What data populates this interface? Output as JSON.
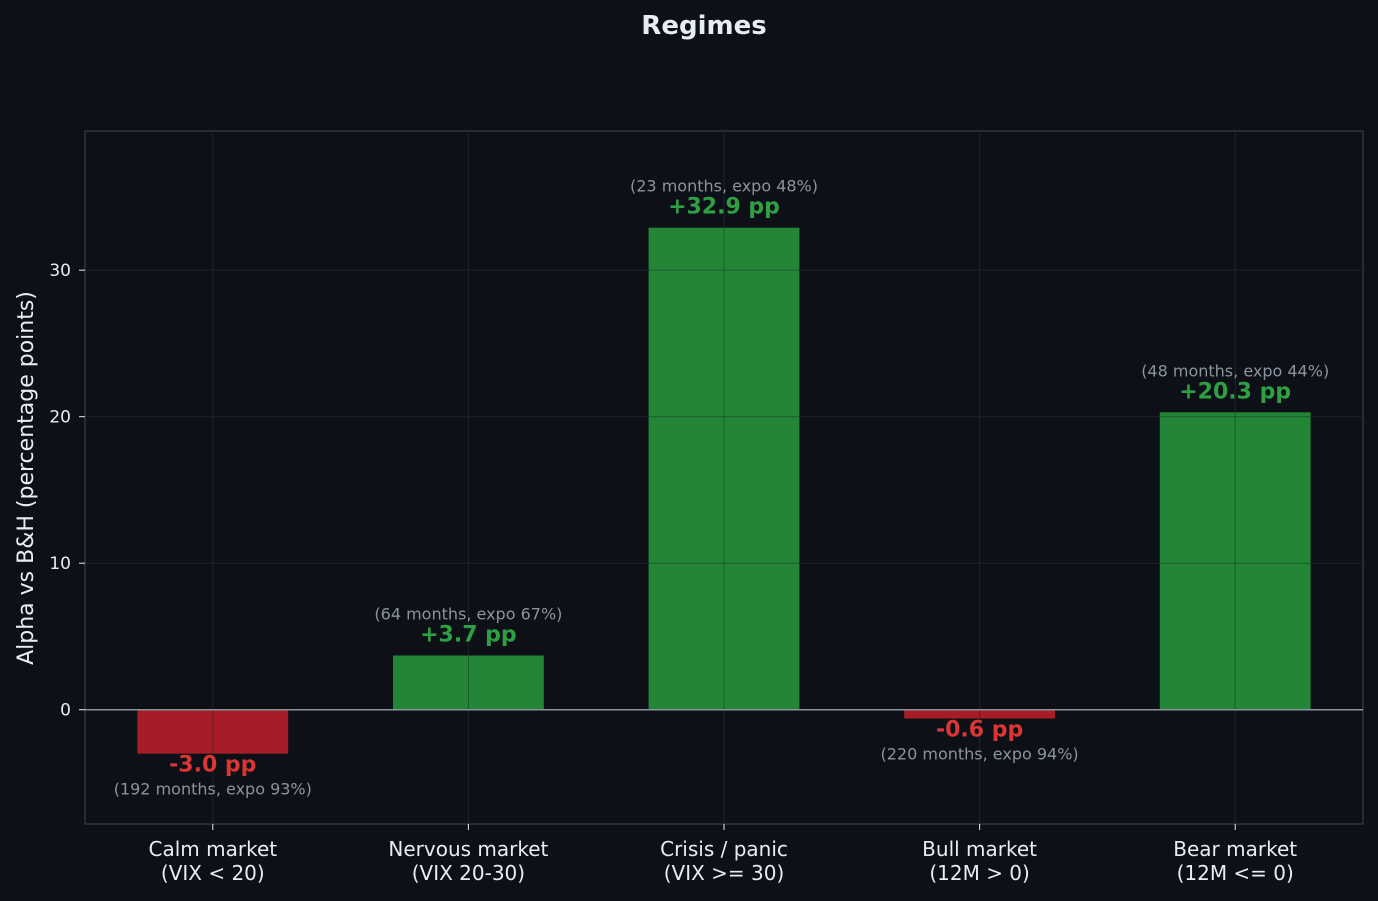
{
  "chart_data": {
    "type": "bar",
    "title": "Regimes",
    "xlabel": "",
    "ylabel": "Alpha vs B&H (percentage points)",
    "ylim": [
      -7.8,
      39.5
    ],
    "yticks": [
      0,
      10,
      20,
      30
    ],
    "grid": true,
    "categories": [
      [
        "Calm market",
        "(VIX < 20)"
      ],
      [
        "Nervous market",
        "(VIX 20-30)"
      ],
      [
        "Crisis / panic",
        "(VIX >= 30)"
      ],
      [
        "Bull market",
        "(12M > 0)"
      ],
      [
        "Bear market",
        "(12M <= 0)"
      ]
    ],
    "values": [
      -3.0,
      3.7,
      32.9,
      -0.6,
      20.3
    ],
    "value_labels": [
      "-3.0 pp",
      "+3.7 pp",
      "+32.9 pp",
      "-0.6 pp",
      "+20.3 pp"
    ],
    "annotations": [
      "(192 months, expo 93%)",
      "(64 months, expo 67%)",
      "(23 months, expo 48%)",
      "(220 months, expo 94%)",
      "(48 months, expo 44%)"
    ],
    "colors": {
      "background": "#0d1017",
      "positive": "#238636",
      "negative": "#a61d28",
      "positive_label": "#2ea043",
      "negative_label": "#da3633",
      "annotation": "#8b949e",
      "text": "#e6edf3",
      "axis": "#30363d",
      "zero_line": "#8b949e"
    }
  }
}
